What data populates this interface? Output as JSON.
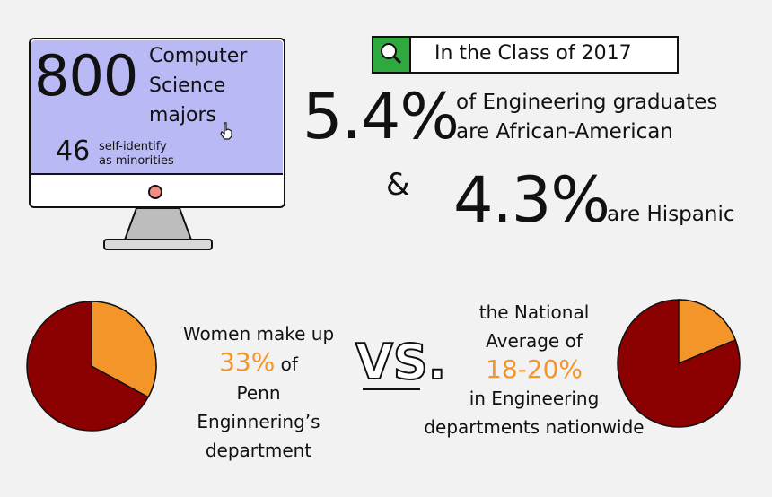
{
  "monitor": {
    "big_number": "800",
    "label_line1": "Computer",
    "label_line2": "Science",
    "label_line3": "majors",
    "minority_number": "46",
    "minority_line1": "self-identify",
    "minority_line2": "as minorities"
  },
  "class_box": {
    "label": "In the Class of 2017",
    "icon": "search-icon"
  },
  "stats": {
    "african_american_pct": "5.4%",
    "african_american_line1": "of Engineering graduates",
    "african_american_line2": "are African-American",
    "ampersand": "&",
    "hispanic_pct": "4.3%",
    "hispanic_text": "are Hispanic"
  },
  "comparison": {
    "women_line1": "Women make up",
    "women_pct": "33%",
    "women_of": "of",
    "women_line3": "Penn",
    "women_line4": "Enginnering’s department",
    "vs": "VS.",
    "national_line1": "the National",
    "national_line2": "Average of",
    "national_pct": "18-20%",
    "national_line4": "in Engineering",
    "national_line5": "departments nationwide"
  },
  "pies": {
    "left_fraction": 0.33,
    "right_fraction": 0.19
  },
  "colors": {
    "pie_main": "#8b0000",
    "pie_slice": "#f4952a",
    "screen": "#b9b9f5",
    "search_box": "#2fa83d",
    "accent_text": "#f4952a"
  }
}
